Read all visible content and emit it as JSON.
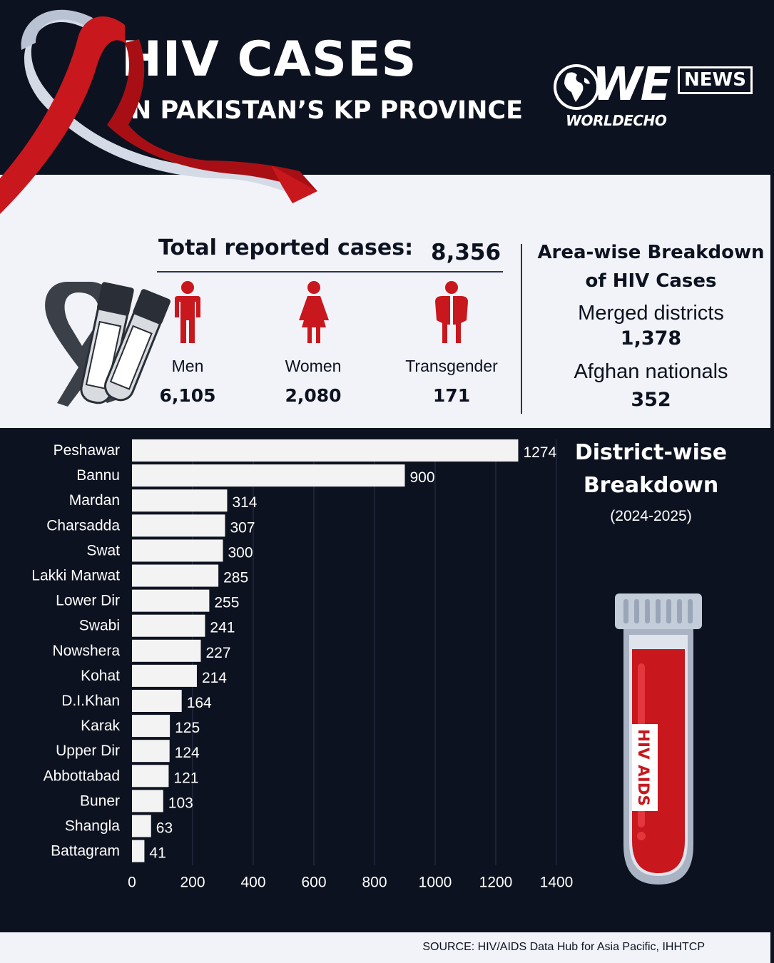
{
  "header": {
    "title": "HIV CASES",
    "subtitle": "IN PAKISTAN’S KP PROVINCE",
    "logo": {
      "mark": "WE",
      "badge": "NEWS",
      "wordmark": "WORLDECHO"
    }
  },
  "summary": {
    "total_label": "Total reported cases:",
    "total_value": "8,356",
    "groups": [
      {
        "label": "Men",
        "value": "6,105",
        "icon": "male-figure-icon"
      },
      {
        "label": "Women",
        "value": "2,080",
        "icon": "female-figure-icon"
      },
      {
        "label": "Transgender",
        "value": "171",
        "icon": "transgender-figure-icon"
      }
    ]
  },
  "area": {
    "title_line1": "Area-wise Breakdown",
    "title_line2": "of HIV Cases",
    "items": [
      {
        "label": "Merged districts",
        "value": "1,378"
      },
      {
        "label": "Afghan nationals",
        "value": "352"
      }
    ]
  },
  "chart_title": {
    "line1": "District-wise",
    "line2": "Breakdown",
    "period": "(2024-2025)"
  },
  "tube_label": "HIV AIDS",
  "source": "SOURCE: HIV/AIDS Data Hub for Asia Pacific, IHHTCP",
  "colors": {
    "dark": "#0d1220",
    "light": "#f1f3f8",
    "red": "#c8171d",
    "bar": "#f3f3f3"
  },
  "chart_data": {
    "type": "bar",
    "orientation": "horizontal",
    "title": "District-wise Breakdown",
    "subtitle": "(2024-2025)",
    "categories": [
      "Peshawar",
      "Bannu",
      "Mardan",
      "Charsadda",
      "Swat",
      "Lakki Marwat",
      "Lower Dir",
      "Swabi",
      "Nowshera",
      "Kohat",
      "D.I.Khan",
      "Karak",
      "Upper Dir",
      "Abbottabad",
      "Buner",
      "Shangla",
      "Battagram"
    ],
    "values": [
      1274,
      900,
      314,
      307,
      300,
      285,
      255,
      241,
      227,
      214,
      164,
      125,
      124,
      121,
      103,
      63,
      41
    ],
    "xlim": [
      0,
      1400
    ],
    "xticks": [
      0,
      200,
      400,
      600,
      800,
      1000,
      1200,
      1400
    ],
    "grid": true,
    "legend": "none"
  }
}
